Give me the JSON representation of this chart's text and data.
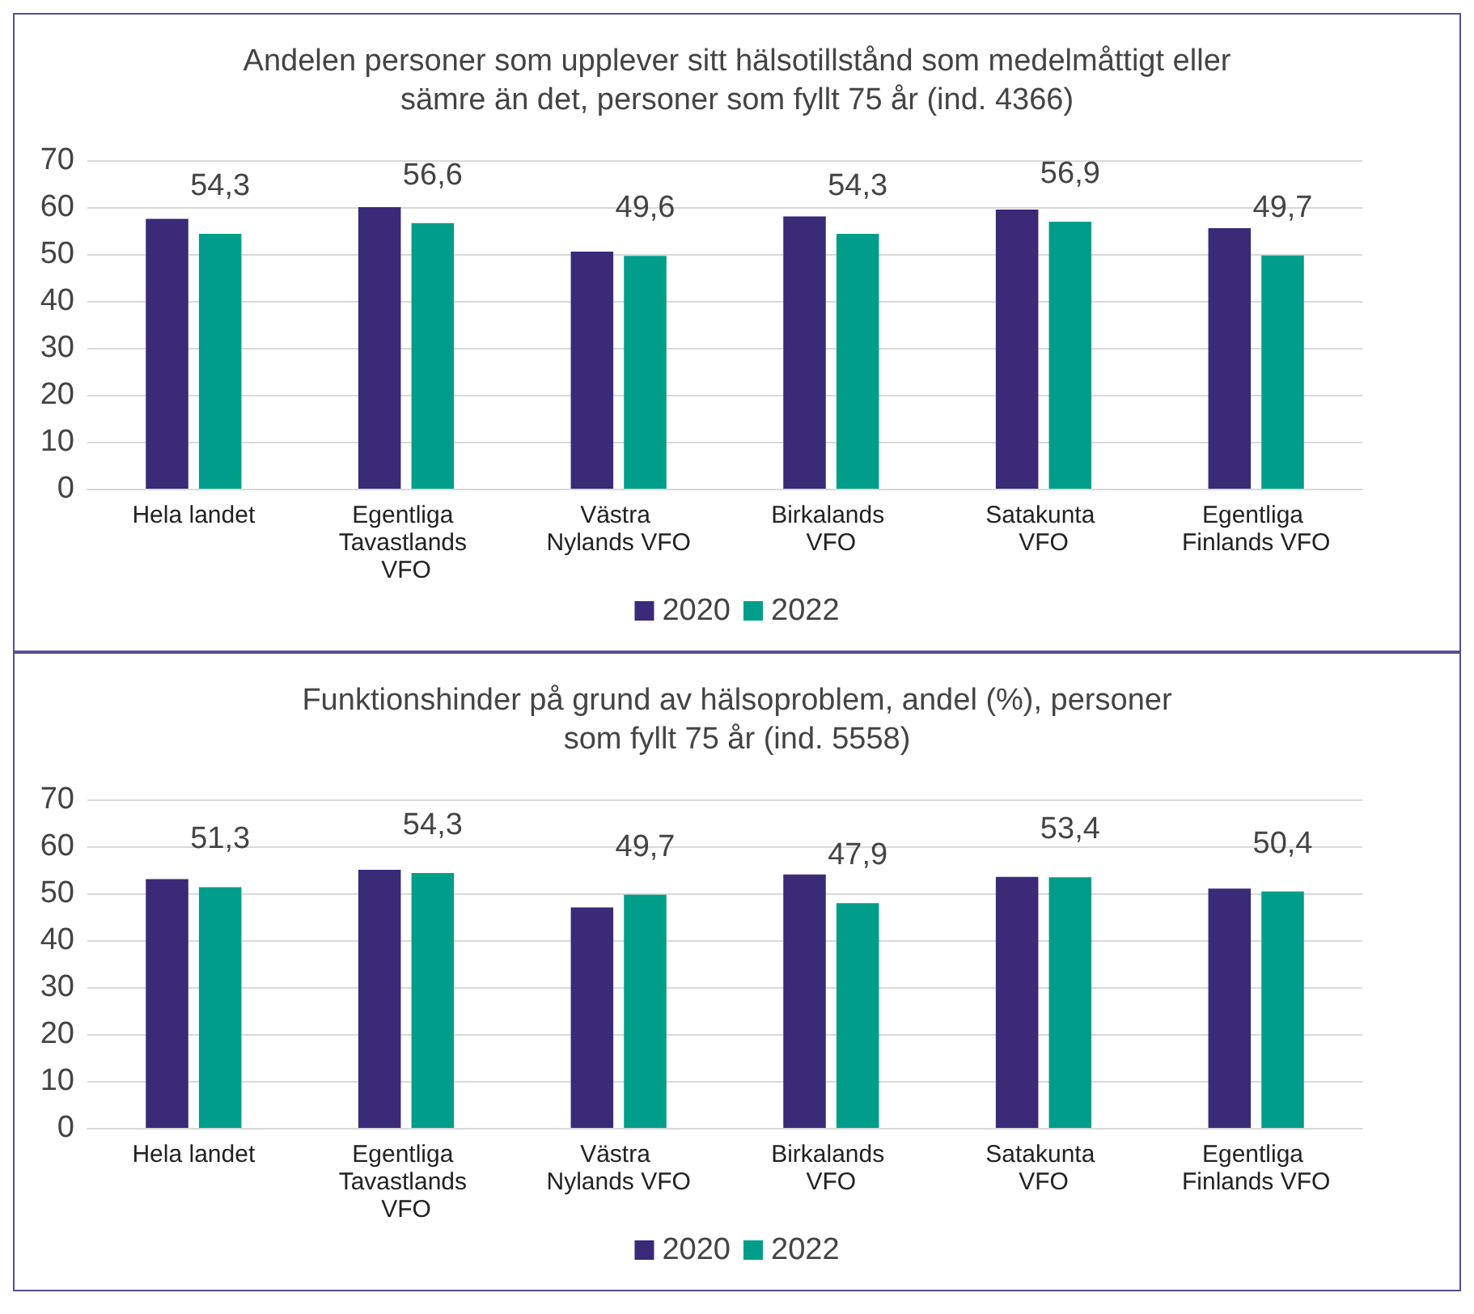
{
  "chart_data": [
    {
      "type": "bar",
      "title": "Andelen personer som upplever sitt hälsotillstånd som medelmåttigt eller\nsämre än det, personer som fyllt 75 år (ind. 4366)",
      "categories": [
        "Hela landet",
        "Egentliga Tavastlands VFO",
        "Västra Nylands VFO",
        "Birkalands VFO",
        "Satakunta VFO",
        "Egentliga Finlands VFO"
      ],
      "series": [
        {
          "name": "2020",
          "color": "#3a2a78",
          "values": [
            57.5,
            60,
            50.5,
            58,
            59.5,
            55.5
          ],
          "value_labels": [
            null,
            null,
            null,
            null,
            null,
            null
          ]
        },
        {
          "name": "2022",
          "color": "#009e8a",
          "values": [
            54.3,
            56.6,
            49.6,
            54.3,
            56.9,
            49.7
          ],
          "value_labels": [
            "54,3",
            "56,6",
            "49,6",
            "54,3",
            "56,9",
            "49,7"
          ]
        }
      ],
      "ylim": [
        0,
        70
      ],
      "yticks": [
        0,
        10,
        20,
        30,
        40,
        50,
        60,
        70
      ],
      "grid": "y",
      "legend": "bottom"
    },
    {
      "type": "bar",
      "title": "Funktionshinder på grund av hälsoproblem, andel (%), personer\nsom fyllt 75 år (ind. 5558)",
      "categories": [
        "Hela landet",
        "Egentliga Tavastlands VFO",
        "Västra Nylands VFO",
        "Birkalands VFO",
        "Satakunta VFO",
        "Egentliga Finlands VFO"
      ],
      "series": [
        {
          "name": "2020",
          "color": "#3a2a78",
          "values": [
            53,
            55,
            47,
            54,
            53.5,
            51
          ],
          "value_labels": [
            null,
            null,
            null,
            null,
            null,
            null
          ]
        },
        {
          "name": "2022",
          "color": "#009e8a",
          "values": [
            51.3,
            54.3,
            49.7,
            47.9,
            53.4,
            50.4
          ],
          "value_labels": [
            "51,3",
            "54,3",
            "49,7",
            "47,9",
            "53,4",
            "50,4"
          ]
        }
      ],
      "ylim": [
        0,
        70
      ],
      "yticks": [
        0,
        10,
        20,
        30,
        40,
        50,
        60,
        70
      ],
      "grid": "y",
      "legend": "bottom"
    }
  ]
}
